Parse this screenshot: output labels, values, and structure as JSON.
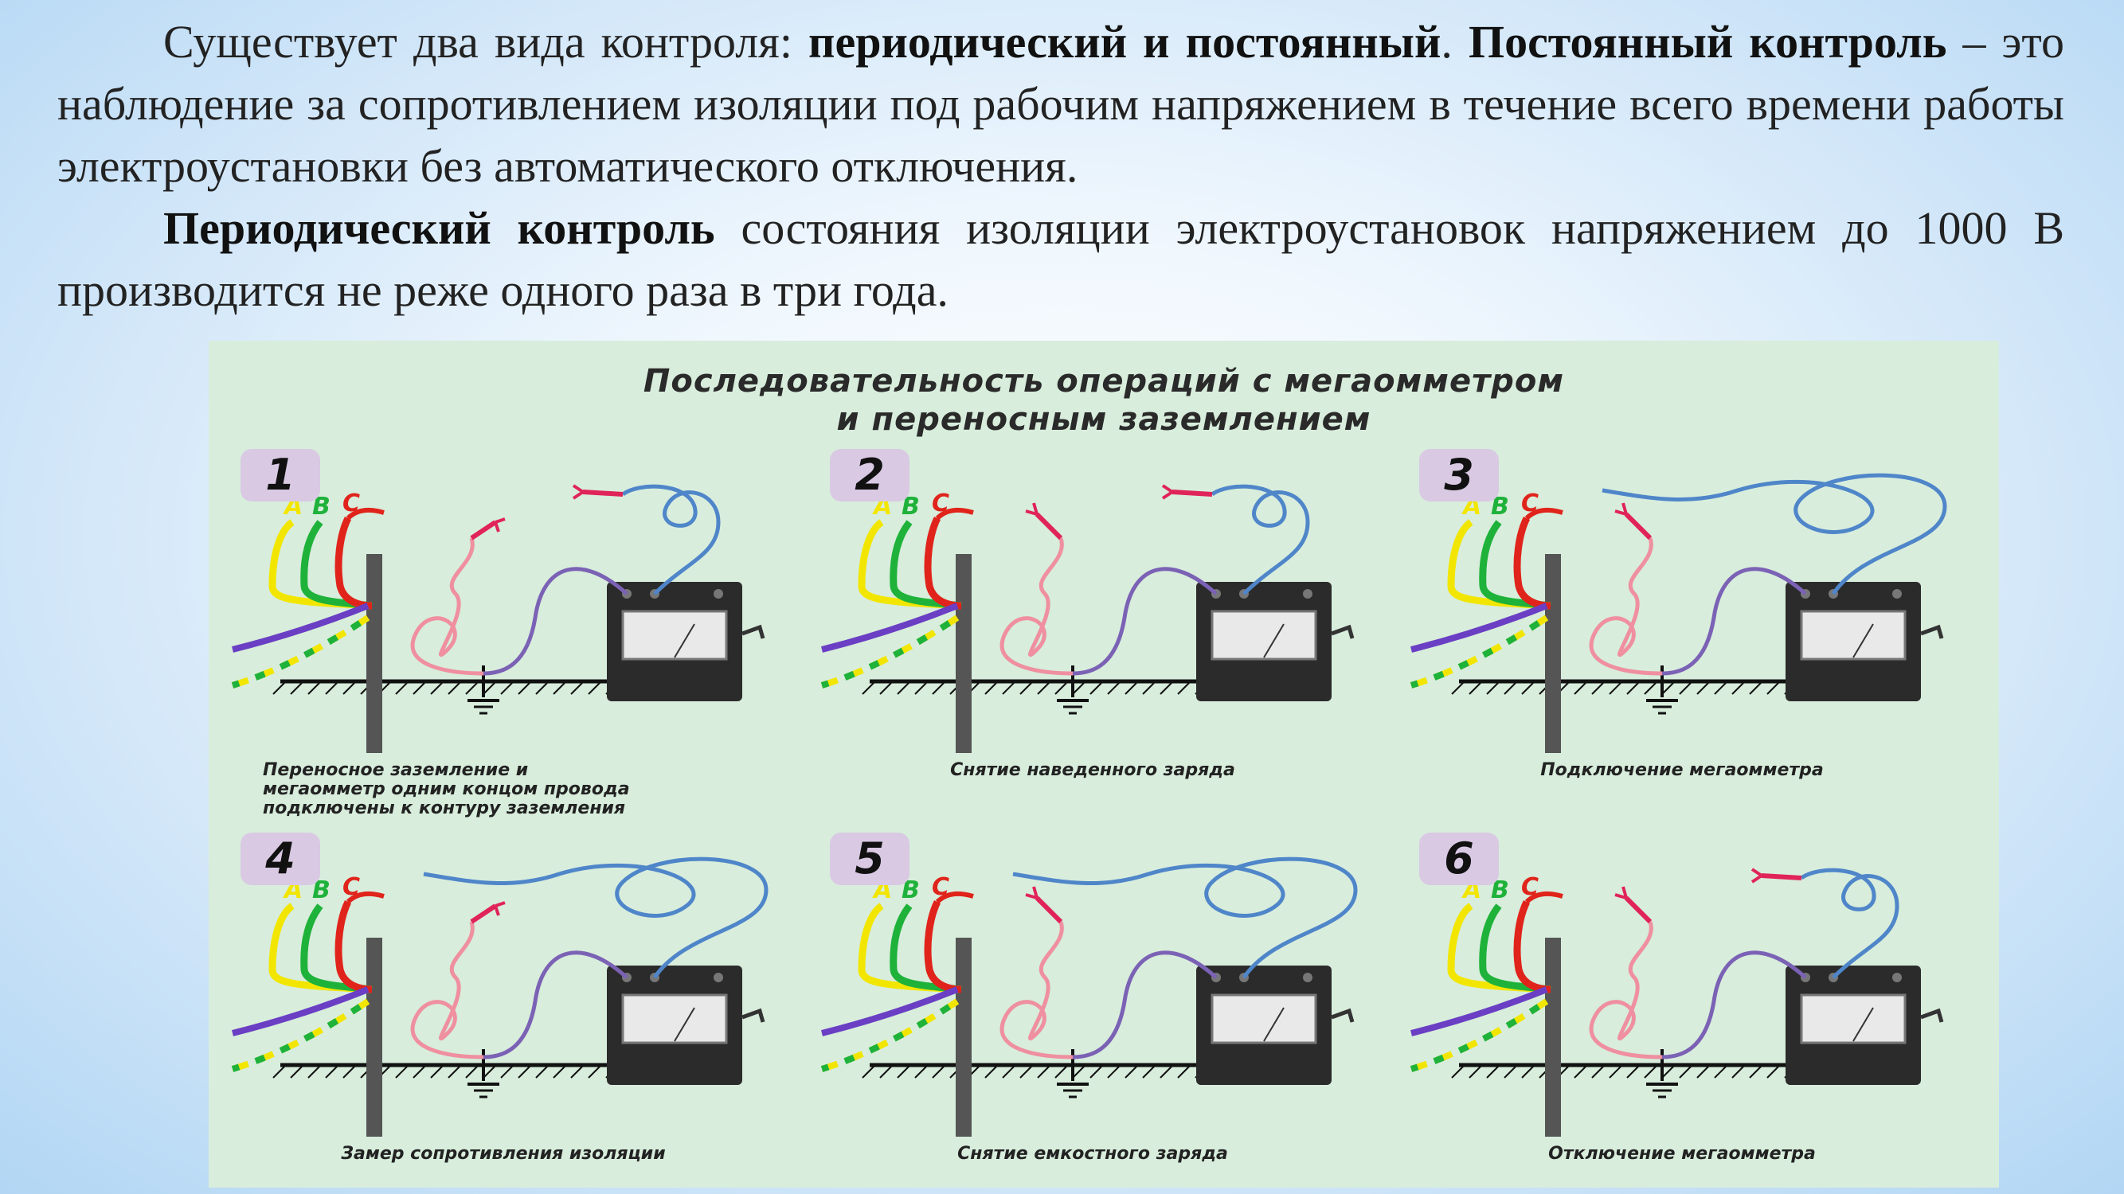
{
  "paragraph1": {
    "t1": "Существует два вида контроля: ",
    "b1": "периодический и постоянный",
    "t2": ". ",
    "b2": "Постоянный контроль",
    "t3": " – это наблюдение за сопротивлением изоляции под рабочим напряжением в течение всего времени работы электроустановки без автоматического отключения."
  },
  "paragraph2": {
    "b1": "Периодический контроль",
    "t1": " состояния изоляции электроустановок напряжением до 1000 В производится не реже одного раза в три года."
  },
  "figure": {
    "title_line1": "Последовательность операций с мегаомметром",
    "title_line2": "и переносным заземлением",
    "phase_labels": [
      "A",
      "B",
      "C"
    ],
    "colors": {
      "phase_a": "#f2e600",
      "phase_b": "#1fb23a",
      "phase_c": "#e0241b",
      "neutral": "#6a3fc4",
      "lead_blue": "#4f86c9",
      "lead_purple": "#7b62b5",
      "ground_lead_pink": "#ef8f9f",
      "clamp": "#e0245a",
      "meter_body": "#2b2b2b",
      "pole": "#555555"
    },
    "panels": [
      {
        "number": "1",
        "caption": [
          "Переносное заземление и",
          "мегаомметр одним концом провода",
          "подключены к контуру заземления"
        ]
      },
      {
        "number": "2",
        "caption": [
          "Снятие наведенного заряда"
        ]
      },
      {
        "number": "3",
        "caption": [
          "Подключение мегаомметра"
        ]
      },
      {
        "number": "4",
        "caption": [
          "Замер сопротивления изоляции"
        ]
      },
      {
        "number": "5",
        "caption": [
          "Снятие емкостного заряда"
        ]
      },
      {
        "number": "6",
        "caption": [
          "Отключение мегаомметра"
        ]
      }
    ]
  }
}
